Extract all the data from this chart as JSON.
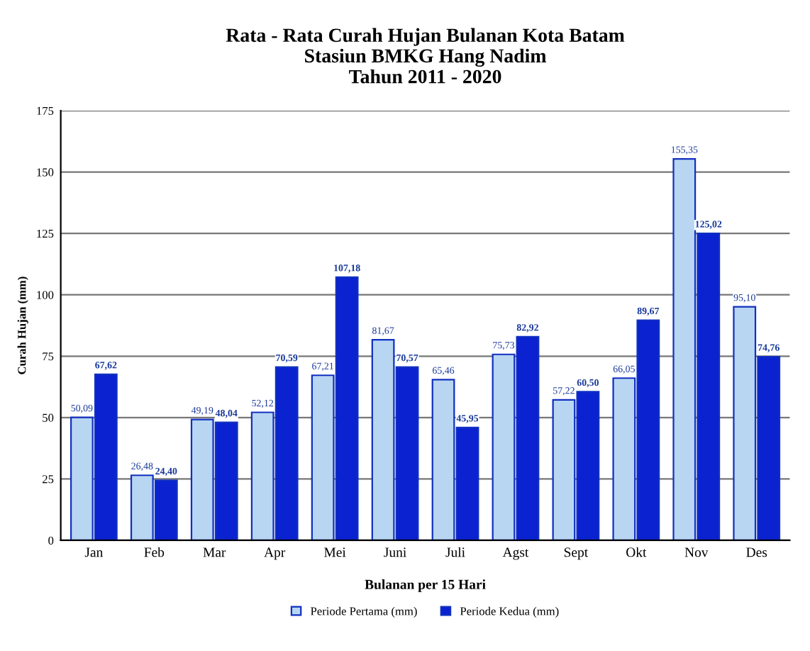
{
  "chart_data": {
    "type": "bar",
    "title": "Rata - Rata Curah Hujan Bulanan Kota Batam\nStasiun BMKG Hang Nadim\nTahun 2011 - 2020",
    "xlabel": "Bulanan per 15 Hari",
    "ylabel": "Curah Hujan (mm)",
    "categories": [
      "Jan",
      "Feb",
      "Mar",
      "Apr",
      "Mei",
      "Juni",
      "Juli",
      "Agst",
      "Sept",
      "Okt",
      "Nov",
      "Des"
    ],
    "series": [
      {
        "name": "Periode Pertama (mm)",
        "color": "#b8d6f2",
        "values": [
          50.09,
          26.48,
          49.19,
          52.12,
          67.21,
          81.67,
          65.46,
          75.73,
          57.22,
          66.05,
          155.35,
          95.1
        ],
        "value_labels": [
          "50,09",
          "26,48",
          "49,19",
          "52,12",
          "67,21",
          "81,67",
          "65,46",
          "75,73",
          "57,22",
          "66,05",
          "155,35",
          "95,10"
        ]
      },
      {
        "name": "Periode Kedua (mm)",
        "color": "#0a22d0",
        "values": [
          67.62,
          24.4,
          48.04,
          70.59,
          107.18,
          70.57,
          45.95,
          82.92,
          60.5,
          89.67,
          125.02,
          74.76
        ],
        "value_labels": [
          "67,62",
          "24,40",
          "48,04",
          "70,59",
          "107,18",
          "70,57",
          "45,95",
          "82,92",
          "60,50",
          "89,67",
          "125,02",
          "74,76"
        ]
      }
    ],
    "ylim": [
      0,
      175
    ],
    "yticks": [
      0,
      25,
      50,
      75,
      100,
      125,
      150,
      175
    ],
    "grid": "y",
    "legend": "bottom"
  }
}
